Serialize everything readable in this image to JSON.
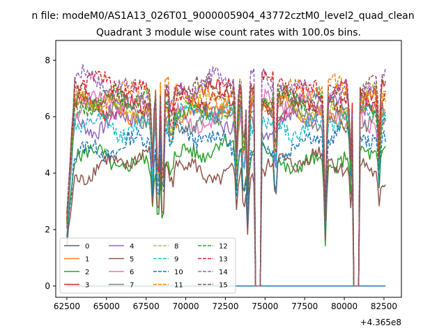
{
  "figure": {
    "suptitle": "n file: modeM0/AS1A13_026T01_9000005904_43772cztM0_level2_quad_clean",
    "offset_label": "+4.365e8"
  },
  "chart_data": {
    "type": "line",
    "title": "Quadrant 3 module wise count rates with 100.0s bins.",
    "xlabel": "",
    "ylabel": "",
    "x_offset": 436500000,
    "xlim": [
      61800,
      83600
    ],
    "ylim": [
      -0.4,
      8.7
    ],
    "xticks": [
      62500,
      65000,
      67500,
      70000,
      72500,
      75000,
      77500,
      80000,
      82500
    ],
    "xtick_labels": [
      "62500",
      "65000",
      "67500",
      "70000",
      "72500",
      "75000",
      "77500",
      "80000",
      "82500"
    ],
    "yticks": [
      0,
      2,
      4,
      6,
      8
    ],
    "ytick_labels": [
      "0",
      "2",
      "4",
      "6",
      "8"
    ],
    "grid": false,
    "legend": {
      "placement": "lower-left",
      "columns": 4
    },
    "x_start": 62500,
    "x_end": 82600,
    "bin_seconds": 100,
    "gaps": [
      [
        74350,
        74700
      ],
      [
        80600,
        80950
      ]
    ],
    "dips": [
      {
        "center": 67900,
        "depth": 2.6
      },
      {
        "center": 68250,
        "depth": 4.0
      },
      {
        "center": 68550,
        "depth": 4.2
      },
      {
        "center": 73200,
        "depth": 2.4
      },
      {
        "center": 73650,
        "depth": 2.8
      },
      {
        "center": 73900,
        "depth": 3.6
      },
      {
        "center": 75650,
        "depth": 2.6
      },
      {
        "center": 78800,
        "depth": 4.5
      },
      {
        "center": 80400,
        "depth": 2.4
      },
      {
        "center": 82200,
        "depth": 2.0
      }
    ],
    "series": [
      {
        "name": "0",
        "color": "#1f77b4",
        "dash": "solid",
        "level": 0.0,
        "flat_zero": true
      },
      {
        "name": "1",
        "color": "#ff7f0e",
        "dash": "solid",
        "level": 6.3
      },
      {
        "name": "2",
        "color": "#2ca02c",
        "dash": "solid",
        "level": 4.6
      },
      {
        "name": "3",
        "color": "#d62728",
        "dash": "solid",
        "level": 6.6
      },
      {
        "name": "4",
        "color": "#9467bd",
        "dash": "solid",
        "level": 6.0
      },
      {
        "name": "5",
        "color": "#8c564b",
        "dash": "solid",
        "level": 4.2
      },
      {
        "name": "6",
        "color": "#e377c2",
        "dash": "solid",
        "level": 6.2
      },
      {
        "name": "7",
        "color": "#7f7f7f",
        "dash": "solid",
        "level": 6.1
      },
      {
        "name": "8",
        "color": "#bcbd22",
        "dash": "dashed",
        "level": 6.5
      },
      {
        "name": "9",
        "color": "#17becf",
        "dash": "dashed",
        "level": 5.9
      },
      {
        "name": "10",
        "color": "#1f77b4",
        "dash": "dashed",
        "level": 5.1
      },
      {
        "name": "11",
        "color": "#ff7f0e",
        "dash": "dashed",
        "level": 6.7
      },
      {
        "name": "12",
        "color": "#2ca02c",
        "dash": "dashed",
        "level": 6.4
      },
      {
        "name": "13",
        "color": "#d62728",
        "dash": "dashed",
        "level": 6.9
      },
      {
        "name": "14",
        "color": "#9467bd",
        "dash": "dashed",
        "level": 7.1
      },
      {
        "name": "15",
        "color": "#8c564b",
        "dash": "dashed",
        "level": 6.8
      }
    ]
  }
}
